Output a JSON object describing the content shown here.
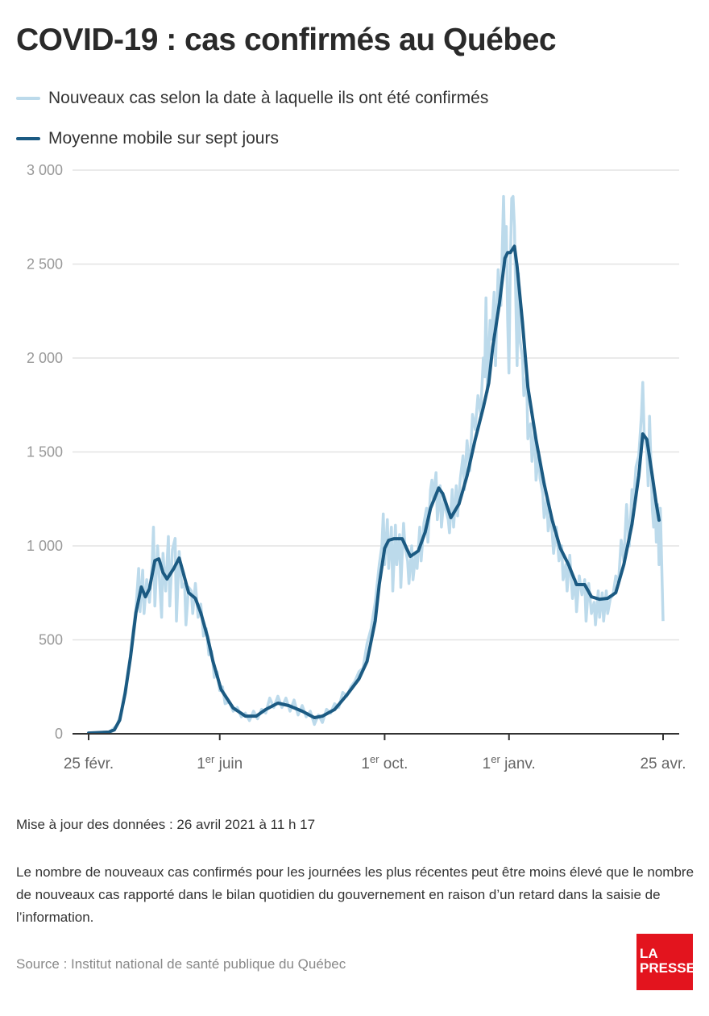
{
  "logo_text": "LA PRESSE",
  "colors": {
    "raw": "#bcdaeb",
    "avg": "#1b5a82",
    "grid": "#e3e3e3",
    "axis": "#333333",
    "logo": "#e3141e"
  },
  "chart_data": {
    "type": "line",
    "title": "COVID-19 : cas confirmés au Québec",
    "x_unit": "days since 25 févr. 2020",
    "xlim": [
      0,
      425
    ],
    "ylim": [
      0,
      3000
    ],
    "grid": true,
    "legend_placement": "top-left",
    "yticks": [
      {
        "value": 0,
        "label": "0"
      },
      {
        "value": 500,
        "label": "500"
      },
      {
        "value": 1000,
        "label": "1 000"
      },
      {
        "value": 1500,
        "label": "1 500"
      },
      {
        "value": 2000,
        "label": "2 000"
      },
      {
        "value": 2500,
        "label": "2 500"
      },
      {
        "value": 3000,
        "label": "3 000"
      }
    ],
    "xticks": [
      {
        "day": 0,
        "pre": "25 févr.",
        "sup": "",
        "post": ""
      },
      {
        "day": 97,
        "pre": "1",
        "sup": "er",
        "post": " juin"
      },
      {
        "day": 219,
        "pre": "1",
        "sup": "er",
        "post": " oct."
      },
      {
        "day": 311,
        "pre": "1",
        "sup": "er",
        "post": " janv."
      },
      {
        "day": 425,
        "pre": "25 avr.",
        "sup": "",
        "post": ""
      }
    ],
    "series": [
      {
        "name": "Nouveaux cas selon la date à laquelle ils ont été confirmés",
        "points": [
          [
            0,
            2
          ],
          [
            3,
            5
          ],
          [
            6,
            3
          ],
          [
            9,
            8
          ],
          [
            12,
            6
          ],
          [
            15,
            10
          ],
          [
            18,
            25
          ],
          [
            21,
            45
          ],
          [
            24,
            110
          ],
          [
            27,
            230
          ],
          [
            29,
            330
          ],
          [
            31,
            420
          ],
          [
            33,
            560
          ],
          [
            35,
            660
          ],
          [
            37,
            880
          ],
          [
            38,
            650
          ],
          [
            40,
            870
          ],
          [
            41,
            640
          ],
          [
            43,
            820
          ],
          [
            45,
            700
          ],
          [
            47,
            900
          ],
          [
            48,
            1100
          ],
          [
            49,
            680
          ],
          [
            51,
            1000
          ],
          [
            52,
            880
          ],
          [
            54,
            620
          ],
          [
            55,
            960
          ],
          [
            57,
            760
          ],
          [
            59,
            1050
          ],
          [
            60,
            680
          ],
          [
            62,
            980
          ],
          [
            64,
            1040
          ],
          [
            65,
            600
          ],
          [
            67,
            970
          ],
          [
            69,
            780
          ],
          [
            71,
            800
          ],
          [
            72,
            580
          ],
          [
            74,
            780
          ],
          [
            76,
            760
          ],
          [
            77,
            640
          ],
          [
            79,
            800
          ],
          [
            81,
            620
          ],
          [
            83,
            690
          ],
          [
            85,
            520
          ],
          [
            87,
            560
          ],
          [
            89,
            420
          ],
          [
            91,
            440
          ],
          [
            93,
            300
          ],
          [
            95,
            330
          ],
          [
            97,
            230
          ],
          [
            99,
            250
          ],
          [
            101,
            160
          ],
          [
            104,
            170
          ],
          [
            107,
            120
          ],
          [
            110,
            140
          ],
          [
            113,
            90
          ],
          [
            116,
            110
          ],
          [
            119,
            70
          ],
          [
            122,
            120
          ],
          [
            125,
            80
          ],
          [
            128,
            130
          ],
          [
            131,
            110
          ],
          [
            134,
            190
          ],
          [
            137,
            140
          ],
          [
            140,
            200
          ],
          [
            143,
            140
          ],
          [
            146,
            190
          ],
          [
            149,
            120
          ],
          [
            152,
            180
          ],
          [
            155,
            100
          ],
          [
            158,
            150
          ],
          [
            161,
            90
          ],
          [
            164,
            120
          ],
          [
            167,
            50
          ],
          [
            170,
            100
          ],
          [
            173,
            60
          ],
          [
            176,
            130
          ],
          [
            179,
            110
          ],
          [
            182,
            160
          ],
          [
            185,
            140
          ],
          [
            188,
            220
          ],
          [
            191,
            200
          ],
          [
            194,
            250
          ],
          [
            197,
            280
          ],
          [
            200,
            330
          ],
          [
            203,
            350
          ],
          [
            206,
            480
          ],
          [
            209,
            560
          ],
          [
            212,
            700
          ],
          [
            215,
            900
          ],
          [
            217,
            1000
          ],
          [
            218,
            1170
          ],
          [
            219,
            900
          ],
          [
            221,
            1140
          ],
          [
            222,
            880
          ],
          [
            224,
            1100
          ],
          [
            225,
            760
          ],
          [
            227,
            1110
          ],
          [
            228,
            900
          ],
          [
            230,
            1060
          ],
          [
            231,
            780
          ],
          [
            233,
            1120
          ],
          [
            234,
            1000
          ],
          [
            236,
            920
          ],
          [
            237,
            800
          ],
          [
            239,
            1000
          ],
          [
            240,
            820
          ],
          [
            242,
            960
          ],
          [
            243,
            880
          ],
          [
            245,
            1100
          ],
          [
            246,
            920
          ],
          [
            248,
            1120
          ],
          [
            250,
            1200
          ],
          [
            251,
            1020
          ],
          [
            253,
            1300
          ],
          [
            254,
            1350
          ],
          [
            255,
            1250
          ],
          [
            257,
            1390
          ],
          [
            258,
            1140
          ],
          [
            260,
            1320
          ],
          [
            261,
            1100
          ],
          [
            263,
            1260
          ],
          [
            264,
            1200
          ],
          [
            266,
            1140
          ],
          [
            267,
            1070
          ],
          [
            269,
            1300
          ],
          [
            270,
            1100
          ],
          [
            272,
            1320
          ],
          [
            273,
            1160
          ],
          [
            275,
            1360
          ],
          [
            277,
            1480
          ],
          [
            278,
            1300
          ],
          [
            280,
            1560
          ],
          [
            282,
            1400
          ],
          [
            284,
            1700
          ],
          [
            286,
            1620
          ],
          [
            288,
            1800
          ],
          [
            290,
            1700
          ],
          [
            292,
            2000
          ],
          [
            293,
            1900
          ],
          [
            294,
            2320
          ],
          [
            295,
            1820
          ],
          [
            297,
            2200
          ],
          [
            298,
            2100
          ],
          [
            300,
            2350
          ],
          [
            301,
            1960
          ],
          [
            303,
            2470
          ],
          [
            305,
            2280
          ],
          [
            307,
            2860
          ],
          [
            308,
            2500
          ],
          [
            309,
            2700
          ],
          [
            310,
            2200
          ],
          [
            311,
            1920
          ],
          [
            312,
            2500
          ],
          [
            313,
            2850
          ],
          [
            314,
            2860
          ],
          [
            315,
            2700
          ],
          [
            317,
            1960
          ],
          [
            318,
            2450
          ],
          [
            319,
            2100
          ],
          [
            321,
            2000
          ],
          [
            322,
            1800
          ],
          [
            324,
            1900
          ],
          [
            325,
            1570
          ],
          [
            327,
            1650
          ],
          [
            328,
            1450
          ],
          [
            330,
            1620
          ],
          [
            331,
            1350
          ],
          [
            333,
            1500
          ],
          [
            334,
            1360
          ],
          [
            336,
            1280
          ],
          [
            337,
            1150
          ],
          [
            339,
            1250
          ],
          [
            340,
            1080
          ],
          [
            342,
            1170
          ],
          [
            344,
            960
          ],
          [
            346,
            1100
          ],
          [
            348,
            920
          ],
          [
            350,
            1000
          ],
          [
            351,
            820
          ],
          [
            353,
            900
          ],
          [
            354,
            760
          ],
          [
            356,
            950
          ],
          [
            358,
            720
          ],
          [
            360,
            820
          ],
          [
            361,
            650
          ],
          [
            363,
            840
          ],
          [
            365,
            740
          ],
          [
            367,
            820
          ],
          [
            368,
            600
          ],
          [
            370,
            800
          ],
          [
            372,
            640
          ],
          [
            374,
            700
          ],
          [
            375,
            580
          ],
          [
            377,
            760
          ],
          [
            378,
            620
          ],
          [
            380,
            750
          ],
          [
            381,
            600
          ],
          [
            383,
            760
          ],
          [
            384,
            640
          ],
          [
            386,
            720
          ],
          [
            388,
            740
          ],
          [
            390,
            840
          ],
          [
            392,
            800
          ],
          [
            394,
            1030
          ],
          [
            396,
            920
          ],
          [
            398,
            1220
          ],
          [
            400,
            1000
          ],
          [
            402,
            1300
          ],
          [
            403,
            1220
          ],
          [
            405,
            1420
          ],
          [
            407,
            1480
          ],
          [
            409,
            1700
          ],
          [
            410,
            1870
          ],
          [
            411,
            1600
          ],
          [
            413,
            1500
          ],
          [
            414,
            1320
          ],
          [
            415,
            1690
          ],
          [
            417,
            1200
          ],
          [
            418,
            1100
          ],
          [
            419,
            1280
          ],
          [
            420,
            1020
          ],
          [
            421,
            1220
          ],
          [
            422,
            900
          ],
          [
            423,
            1200
          ],
          [
            425,
            600
          ]
        ]
      },
      {
        "name": "Moyenne mobile sur sept jours",
        "points": [
          [
            0,
            4
          ],
          [
            15,
            9
          ],
          [
            19,
            21
          ],
          [
            23,
            73
          ],
          [
            27,
            215
          ],
          [
            31,
            408
          ],
          [
            35,
            644
          ],
          [
            39,
            781
          ],
          [
            42,
            729
          ],
          [
            45,
            772
          ],
          [
            49,
            922
          ],
          [
            52,
            931
          ],
          [
            55,
            858
          ],
          [
            58,
            824
          ],
          [
            63,
            880
          ],
          [
            67,
            935
          ],
          [
            70,
            858
          ],
          [
            74,
            751
          ],
          [
            79,
            721
          ],
          [
            83,
            644
          ],
          [
            88,
            515
          ],
          [
            92,
            386
          ],
          [
            98,
            236
          ],
          [
            107,
            137
          ],
          [
            116,
            94
          ],
          [
            124,
            94
          ],
          [
            131,
            129
          ],
          [
            140,
            163
          ],
          [
            148,
            150
          ],
          [
            158,
            120
          ],
          [
            167,
            86
          ],
          [
            173,
            94
          ],
          [
            182,
            129
          ],
          [
            191,
            206
          ],
          [
            200,
            292
          ],
          [
            206,
            386
          ],
          [
            212,
            601
          ],
          [
            215,
            794
          ],
          [
            219,
            987
          ],
          [
            222,
            1030
          ],
          [
            226,
            1038
          ],
          [
            232,
            1038
          ],
          [
            238,
            944
          ],
          [
            244,
            974
          ],
          [
            249,
            1073
          ],
          [
            253,
            1201
          ],
          [
            259,
            1308
          ],
          [
            262,
            1278
          ],
          [
            268,
            1150
          ],
          [
            274,
            1223
          ],
          [
            280,
            1373
          ],
          [
            286,
            1566
          ],
          [
            292,
            1737
          ],
          [
            296,
            1866
          ],
          [
            299,
            2059
          ],
          [
            304,
            2295
          ],
          [
            308,
            2531
          ],
          [
            310,
            2561
          ],
          [
            312,
            2561
          ],
          [
            315,
            2595
          ],
          [
            317,
            2488
          ],
          [
            321,
            2188
          ],
          [
            325,
            1845
          ],
          [
            331,
            1566
          ],
          [
            337,
            1330
          ],
          [
            343,
            1137
          ],
          [
            349,
            987
          ],
          [
            355,
            901
          ],
          [
            361,
            794
          ],
          [
            367,
            794
          ],
          [
            372,
            729
          ],
          [
            378,
            716
          ],
          [
            384,
            721
          ],
          [
            390,
            751
          ],
          [
            396,
            901
          ],
          [
            402,
            1115
          ],
          [
            407,
            1373
          ],
          [
            410,
            1596
          ],
          [
            413,
            1566
          ],
          [
            417,
            1373
          ],
          [
            420,
            1223
          ],
          [
            422,
            1137
          ]
        ]
      }
    ]
  },
  "footer": {
    "updated": "Mise à jour des données : 26 avril 2021 à 11 h 17",
    "note": "Le nombre de nouveaux cas confirmés pour les journées les plus récentes peut être moins élevé que le nombre de nouveaux cas rapporté dans le bilan quotidien du gouvernement en raison d’un retard dans la saisie de l’information.",
    "source": "Source : Institut national de santé publique du Québec"
  }
}
